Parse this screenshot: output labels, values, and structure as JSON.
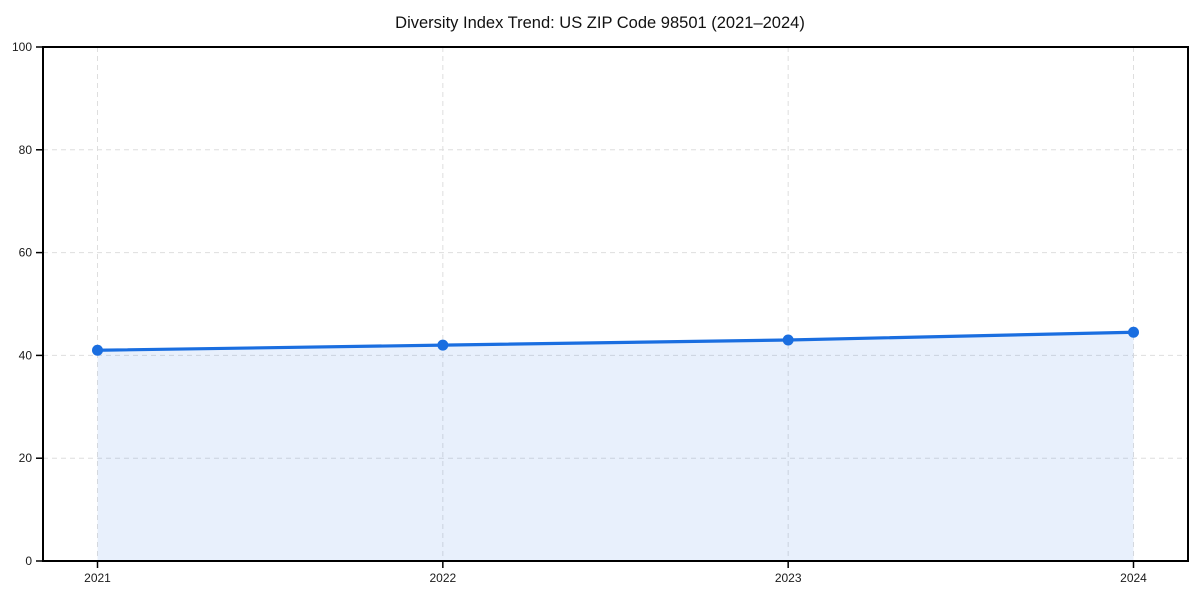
{
  "chart_data": {
    "type": "area",
    "title": "Diversity Index Trend: US ZIP Code 98501 (2021–2024)",
    "x": [
      "2021",
      "2022",
      "2023",
      "2024"
    ],
    "series": [
      {
        "name": "Diversity Index",
        "values": [
          41,
          42,
          43,
          44.5
        ]
      }
    ],
    "xlabel": "",
    "ylabel": "",
    "ylim": [
      0,
      100
    ],
    "yticks": [
      0,
      20,
      40,
      60,
      80,
      100
    ],
    "grid": "dashed",
    "legend": "none",
    "colors": {
      "line": "#1a6ee0",
      "marker": "#1a6ee0",
      "fill": "rgba(26,110,224,0.10)",
      "grid": "#dedede",
      "spine": "#000000",
      "tick": "#000000",
      "tick_label": "#1a1a1a",
      "background": "#ffffff"
    }
  }
}
